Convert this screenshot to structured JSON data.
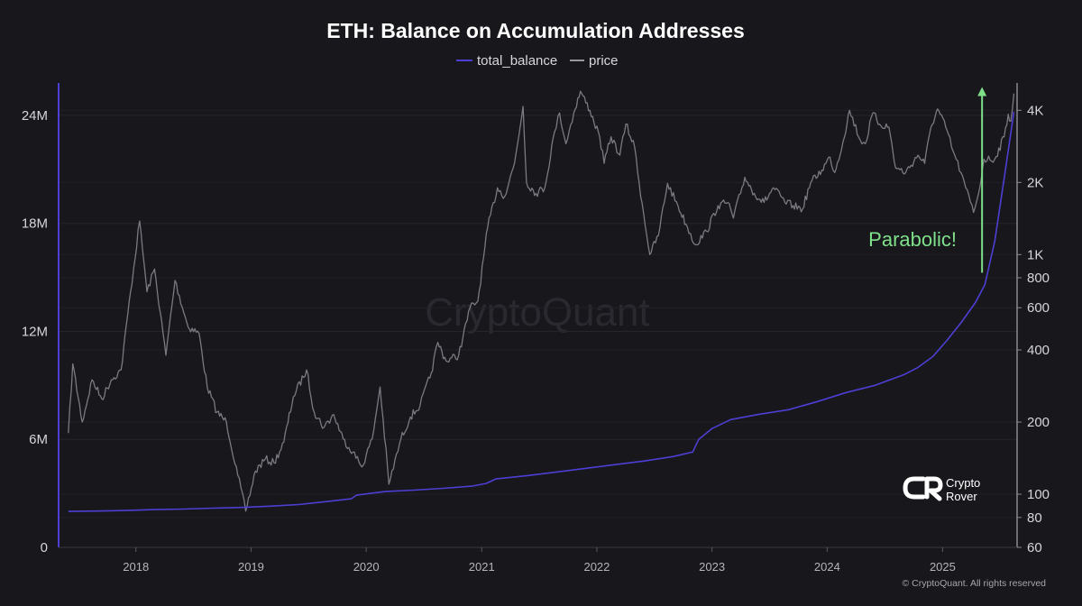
{
  "chart_data": {
    "type": "line",
    "title": "ETH: Balance on Accumulation Addresses",
    "legend_position": "top-center",
    "x_axis": {
      "type": "time",
      "range": [
        "2017-05-01",
        "2025-08-25"
      ],
      "tick_labels": [
        "2018",
        "2019",
        "2020",
        "2021",
        "2022",
        "2023",
        "2024",
        "2025"
      ]
    },
    "y_axis_left": {
      "scale": "linear",
      "range": [
        0,
        25800000
      ],
      "tick_values": [
        0,
        6000000,
        12000000,
        18000000,
        24000000
      ],
      "tick_labels": [
        "0",
        "6M",
        "12M",
        "18M",
        "24M"
      ]
    },
    "y_axis_right": {
      "scale": "log",
      "range": [
        60,
        5200
      ],
      "tick_values": [
        60,
        80,
        100,
        200,
        400,
        600,
        800,
        1000,
        2000,
        4000
      ],
      "tick_labels": [
        "60",
        "80",
        "100",
        "200",
        "400",
        "600",
        "800",
        "1K",
        "2K",
        "4K"
      ]
    },
    "grid": true,
    "series": [
      {
        "name": "total_balance",
        "axis": "left",
        "color": "#4d3fd4",
        "points": [
          [
            "2017-06-01",
            2000000
          ],
          [
            "2017-09-01",
            2020000
          ],
          [
            "2017-12-01",
            2050000
          ],
          [
            "2018-03-01",
            2100000
          ],
          [
            "2018-06-01",
            2130000
          ],
          [
            "2018-09-01",
            2180000
          ],
          [
            "2018-12-01",
            2220000
          ],
          [
            "2019-03-01",
            2290000
          ],
          [
            "2019-06-01",
            2380000
          ],
          [
            "2019-09-01",
            2550000
          ],
          [
            "2019-11-15",
            2700000
          ],
          [
            "2019-12-01",
            2900000
          ],
          [
            "2020-03-01",
            3100000
          ],
          [
            "2020-06-01",
            3180000
          ],
          [
            "2020-09-01",
            3280000
          ],
          [
            "2020-12-01",
            3400000
          ],
          [
            "2021-01-15",
            3550000
          ],
          [
            "2021-02-15",
            3800000
          ],
          [
            "2021-06-01",
            4000000
          ],
          [
            "2021-09-01",
            4200000
          ],
          [
            "2021-12-01",
            4400000
          ],
          [
            "2022-03-01",
            4600000
          ],
          [
            "2022-06-01",
            4800000
          ],
          [
            "2022-09-01",
            5050000
          ],
          [
            "2022-11-01",
            5300000
          ],
          [
            "2022-11-20",
            6000000
          ],
          [
            "2023-01-01",
            6600000
          ],
          [
            "2023-03-01",
            7100000
          ],
          [
            "2023-06-01",
            7400000
          ],
          [
            "2023-09-01",
            7650000
          ],
          [
            "2023-12-01",
            8100000
          ],
          [
            "2024-03-01",
            8600000
          ],
          [
            "2024-06-01",
            9000000
          ],
          [
            "2024-09-01",
            9600000
          ],
          [
            "2024-10-15",
            10000000
          ],
          [
            "2024-12-01",
            10600000
          ],
          [
            "2025-01-15",
            11500000
          ],
          [
            "2025-03-01",
            12500000
          ],
          [
            "2025-04-15",
            13600000
          ],
          [
            "2025-05-15",
            14600000
          ],
          [
            "2025-06-15",
            17000000
          ],
          [
            "2025-07-15",
            20500000
          ],
          [
            "2025-08-15",
            24200000
          ]
        ]
      },
      {
        "name": "price",
        "axis": "right",
        "color": "#7b7a82",
        "points": [
          [
            "2017-06-01",
            180
          ],
          [
            "2017-06-15",
            350
          ],
          [
            "2017-07-15",
            200
          ],
          [
            "2017-08-15",
            300
          ],
          [
            "2017-09-15",
            250
          ],
          [
            "2017-10-15",
            300
          ],
          [
            "2017-11-15",
            330
          ],
          [
            "2017-12-15",
            700
          ],
          [
            "2018-01-13",
            1380
          ],
          [
            "2018-02-05",
            700
          ],
          [
            "2018-03-01",
            870
          ],
          [
            "2018-04-06",
            380
          ],
          [
            "2018-05-05",
            780
          ],
          [
            "2018-06-15",
            500
          ],
          [
            "2018-07-20",
            470
          ],
          [
            "2018-08-15",
            280
          ],
          [
            "2018-09-15",
            220
          ],
          [
            "2018-10-15",
            200
          ],
          [
            "2018-11-20",
            120
          ],
          [
            "2018-12-15",
            85
          ],
          [
            "2019-01-15",
            125
          ],
          [
            "2019-02-15",
            140
          ],
          [
            "2019-03-15",
            135
          ],
          [
            "2019-04-15",
            165
          ],
          [
            "2019-05-15",
            255
          ],
          [
            "2019-06-26",
            330
          ],
          [
            "2019-07-20",
            220
          ],
          [
            "2019-08-20",
            190
          ],
          [
            "2019-09-20",
            215
          ],
          [
            "2019-10-20",
            170
          ],
          [
            "2019-11-20",
            150
          ],
          [
            "2019-12-18",
            130
          ],
          [
            "2020-01-20",
            170
          ],
          [
            "2020-02-14",
            280
          ],
          [
            "2020-03-13",
            110
          ],
          [
            "2020-04-20",
            170
          ],
          [
            "2020-05-20",
            210
          ],
          [
            "2020-06-20",
            235
          ],
          [
            "2020-07-25",
            320
          ],
          [
            "2020-08-15",
            430
          ],
          [
            "2020-09-10",
            360
          ],
          [
            "2020-10-20",
            380
          ],
          [
            "2020-11-25",
            600
          ],
          [
            "2020-12-20",
            640
          ],
          [
            "2021-01-20",
            1300
          ],
          [
            "2021-02-20",
            1900
          ],
          [
            "2021-03-15",
            1750
          ],
          [
            "2021-04-15",
            2400
          ],
          [
            "2021-05-12",
            4150
          ],
          [
            "2021-05-23",
            2000
          ],
          [
            "2021-06-22",
            1800
          ],
          [
            "2021-07-20",
            1900
          ],
          [
            "2021-08-20",
            3250
          ],
          [
            "2021-09-05",
            3900
          ],
          [
            "2021-09-25",
            2900
          ],
          [
            "2021-10-20",
            3900
          ],
          [
            "2021-11-10",
            4800
          ],
          [
            "2021-12-10",
            4000
          ],
          [
            "2022-01-10",
            3100
          ],
          [
            "2022-01-24",
            2400
          ],
          [
            "2022-02-15",
            3100
          ],
          [
            "2022-03-15",
            2600
          ],
          [
            "2022-04-03",
            3500
          ],
          [
            "2022-05-01",
            2800
          ],
          [
            "2022-05-15",
            2000
          ],
          [
            "2022-06-18",
            1000
          ],
          [
            "2022-07-15",
            1200
          ],
          [
            "2022-08-13",
            1980
          ],
          [
            "2022-09-15",
            1600
          ],
          [
            "2022-10-15",
            1300
          ],
          [
            "2022-11-09",
            1100
          ],
          [
            "2022-12-15",
            1250
          ],
          [
            "2023-01-20",
            1600
          ],
          [
            "2023-02-20",
            1650
          ],
          [
            "2023-03-10",
            1420
          ],
          [
            "2023-04-15",
            2100
          ],
          [
            "2023-05-15",
            1800
          ],
          [
            "2023-06-15",
            1650
          ],
          [
            "2023-07-15",
            1900
          ],
          [
            "2023-08-20",
            1650
          ],
          [
            "2023-09-15",
            1600
          ],
          [
            "2023-10-15",
            1550
          ],
          [
            "2023-11-10",
            2000
          ],
          [
            "2023-12-15",
            2250
          ],
          [
            "2024-01-10",
            2550
          ],
          [
            "2024-01-25",
            2200
          ],
          [
            "2024-02-20",
            2950
          ],
          [
            "2024-03-12",
            4000
          ],
          [
            "2024-04-15",
            3000
          ],
          [
            "2024-05-01",
            2900
          ],
          [
            "2024-05-25",
            3900
          ],
          [
            "2024-06-15",
            3500
          ],
          [
            "2024-07-15",
            3400
          ],
          [
            "2024-08-05",
            2300
          ],
          [
            "2024-09-06",
            2200
          ],
          [
            "2024-10-15",
            2600
          ],
          [
            "2024-11-05",
            2400
          ],
          [
            "2024-11-25",
            3400
          ],
          [
            "2024-12-16",
            4050
          ],
          [
            "2025-01-15",
            3300
          ],
          [
            "2025-02-03",
            2700
          ],
          [
            "2025-02-28",
            2200
          ],
          [
            "2025-03-15",
            1900
          ],
          [
            "2025-04-09",
            1500
          ],
          [
            "2025-04-25",
            1800
          ],
          [
            "2025-05-12",
            2500
          ],
          [
            "2025-06-15",
            2500
          ],
          [
            "2025-07-15",
            3100
          ],
          [
            "2025-07-28",
            3850
          ],
          [
            "2025-08-05",
            3600
          ],
          [
            "2025-08-15",
            4700
          ]
        ]
      }
    ],
    "annotations": [
      {
        "text": "Parabolic!",
        "type": "arrow",
        "color": "#7fe08a",
        "date": "2025-05-06",
        "from_price": 840,
        "to_price": 5000
      }
    ],
    "watermark": "CryptoQuant",
    "copyright": "© CryptoQuant. All rights reserved",
    "brand": {
      "line1": "Crypto",
      "line2": "Rover"
    }
  }
}
